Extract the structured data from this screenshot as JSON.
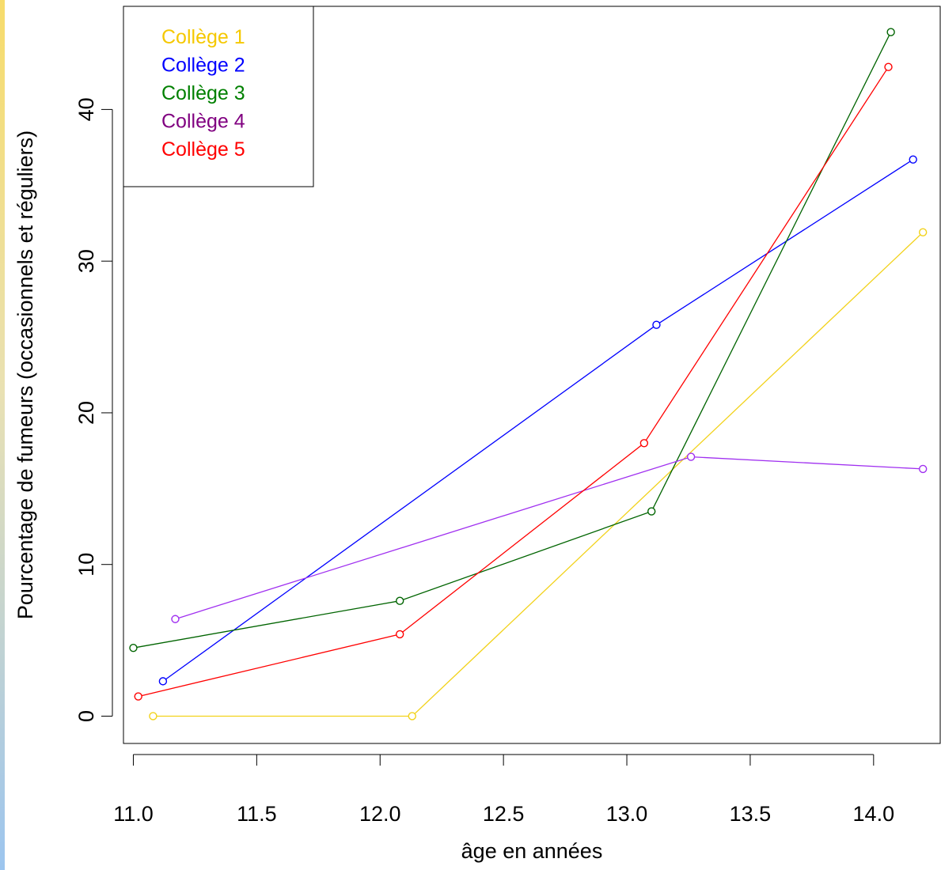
{
  "chart_data": {
    "type": "line",
    "xlabel": "âge en années",
    "ylabel": "Pourcentage de fumeurs (occasionnels et réguliers)",
    "xlim": [
      10.96,
      14.27
    ],
    "ylim": [
      -1.8,
      46.8
    ],
    "x_ticks": [
      11.0,
      11.5,
      12.0,
      12.5,
      13.0,
      13.5,
      14.0
    ],
    "x_tick_labels": [
      "11.0",
      "11.5",
      "12.0",
      "12.5",
      "13.0",
      "13.5",
      "14.0"
    ],
    "y_ticks": [
      0,
      10,
      20,
      30,
      40
    ],
    "y_tick_labels": [
      "0",
      "10",
      "20",
      "30",
      "40"
    ],
    "grid": false,
    "legend_position": "top-left",
    "series": [
      {
        "name": "Collège 1",
        "color": "#f5c800",
        "line_color": "#f2d21a",
        "x": [
          11.08,
          12.13,
          14.2
        ],
        "y": [
          0.0,
          0.0,
          31.9
        ]
      },
      {
        "name": "Collège 2",
        "color": "#0000ff",
        "line_color": "#0000ff",
        "x": [
          11.12,
          13.12,
          14.16
        ],
        "y": [
          2.3,
          25.8,
          36.7
        ]
      },
      {
        "name": "Collège 3",
        "color": "#008000",
        "line_color": "#006400",
        "x": [
          11.0,
          12.08,
          13.1,
          14.07
        ],
        "y": [
          4.5,
          7.6,
          13.5,
          45.1
        ]
      },
      {
        "name": "Collège 4",
        "color": "#800080",
        "line_color": "#a030f0",
        "x": [
          11.17,
          13.26,
          14.2
        ],
        "y": [
          6.4,
          17.1,
          16.3
        ]
      },
      {
        "name": "Collège 5",
        "color": "#ff0000",
        "line_color": "#ff0000",
        "x": [
          11.02,
          12.08,
          13.07,
          14.06
        ],
        "y": [
          1.3,
          5.4,
          18.0,
          42.8
        ]
      }
    ]
  }
}
